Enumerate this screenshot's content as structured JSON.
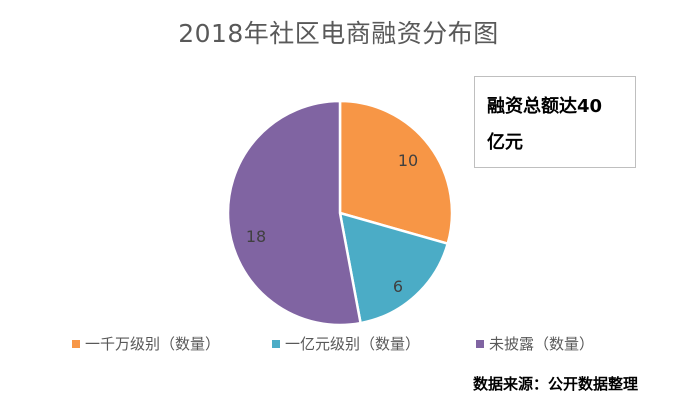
{
  "chart_data": {
    "type": "pie",
    "title": "2018年社区电商融资分布图",
    "categories": [
      "一千万级别（数量）",
      "一亿元级别（数量）",
      "未披露（数量）"
    ],
    "values": [
      10,
      6,
      18
    ],
    "colors": [
      "#F79646",
      "#4BACC6",
      "#8064A2"
    ],
    "data_labels": [
      "10",
      "6",
      "18"
    ],
    "legend_position": "bottom",
    "annotations": [
      "融资总额达40亿元",
      "数据来源：公开数据整理"
    ]
  },
  "title": "2018年社区电商融资分布图",
  "note": {
    "line1": "融资总额达40",
    "line2": "亿元"
  },
  "legend": [
    {
      "label": "一千万级别（数量）",
      "color": "#F79646"
    },
    {
      "label": "一亿元级别（数量）",
      "color": "#4BACC6"
    },
    {
      "label": "未披露（数量）",
      "color": "#8064A2"
    }
  ],
  "source": "数据来源：公开数据整理"
}
